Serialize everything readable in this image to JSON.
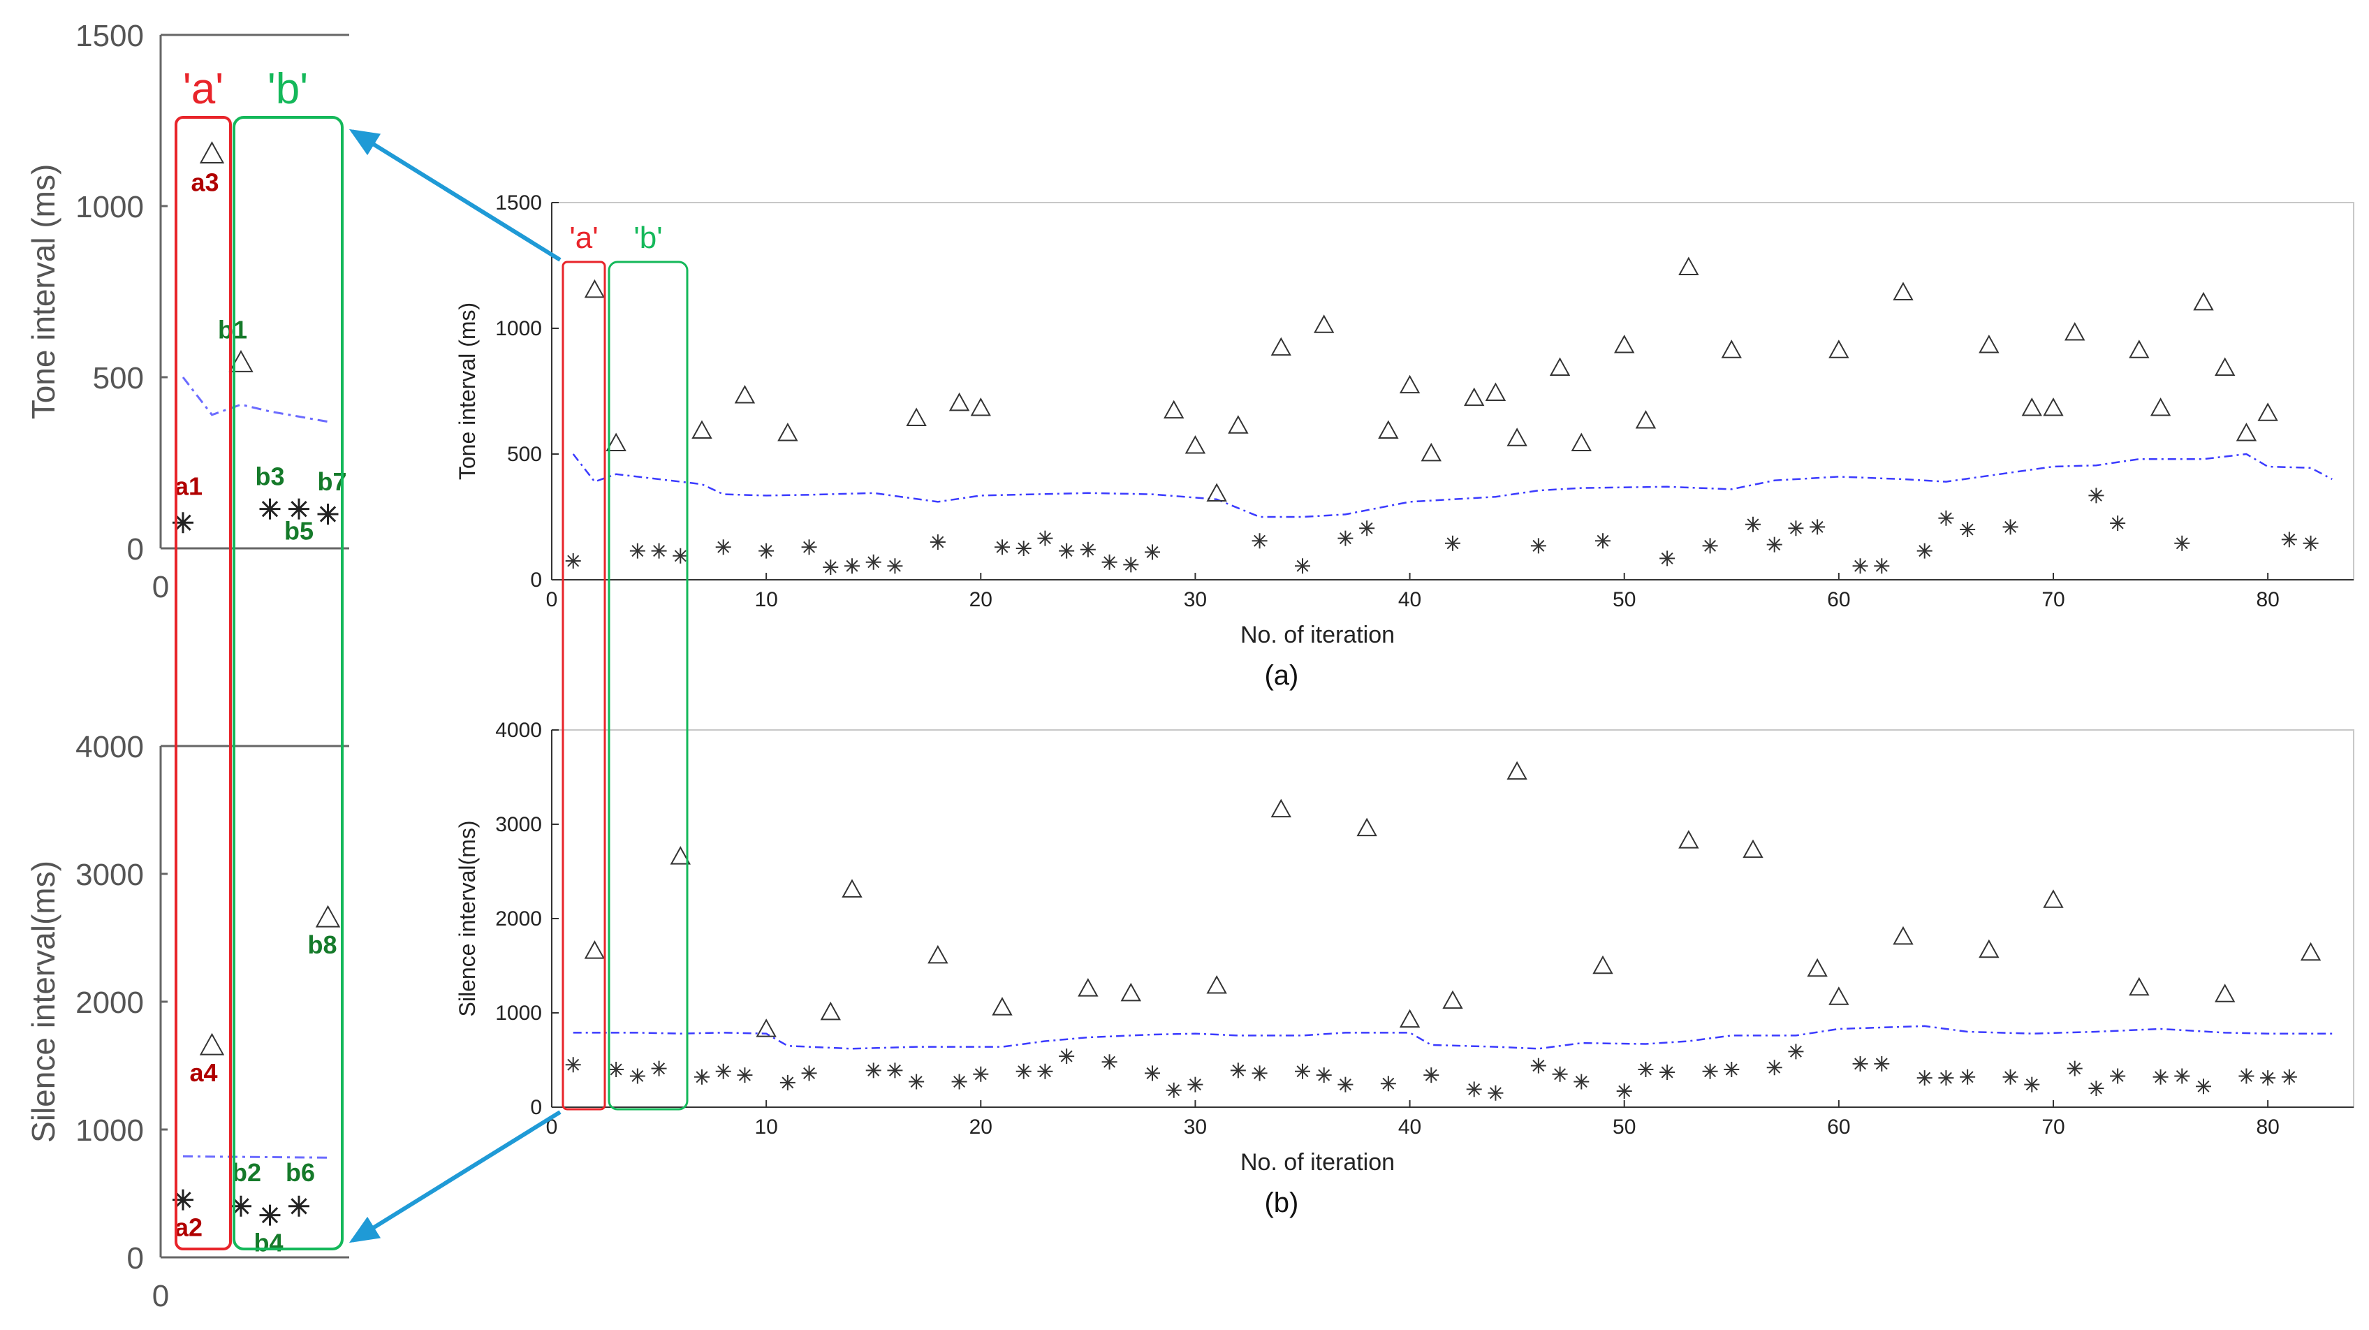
{
  "chart_data": [
    {
      "id": "a",
      "type": "scatter",
      "caption": "(a)",
      "xlabel": "No. of iteration",
      "ylabel": "Tone interval (ms)",
      "xlim": [
        0,
        84
      ],
      "ylim": [
        0,
        1500
      ],
      "xticks": [
        0,
        10,
        20,
        30,
        40,
        50,
        60,
        70,
        80
      ],
      "yticks": [
        0,
        500,
        1000,
        1500
      ],
      "markers": {
        "triangle": "triangle-marker",
        "star": "asterisk-marker",
        "threshold": "dash-dot-line"
      },
      "colors": {
        "points": "#333333",
        "threshold": "#3b3bff"
      },
      "triangle_points": [
        [
          2,
          1150
        ],
        [
          3,
          540
        ],
        [
          7,
          590
        ],
        [
          9,
          730
        ],
        [
          11,
          580
        ],
        [
          17,
          640
        ],
        [
          19,
          700
        ],
        [
          20,
          680
        ],
        [
          29,
          670
        ],
        [
          30,
          530
        ],
        [
          31,
          340
        ],
        [
          32,
          610
        ],
        [
          34,
          920
        ],
        [
          36,
          1010
        ],
        [
          39,
          590
        ],
        [
          40,
          770
        ],
        [
          41,
          500
        ],
        [
          43,
          720
        ],
        [
          44,
          740
        ],
        [
          45,
          560
        ],
        [
          47,
          840
        ],
        [
          48,
          540
        ],
        [
          50,
          930
        ],
        [
          51,
          630
        ],
        [
          53,
          1240
        ],
        [
          55,
          910
        ],
        [
          60,
          910
        ],
        [
          63,
          1140
        ],
        [
          67,
          930
        ],
        [
          69,
          680
        ],
        [
          70,
          680
        ],
        [
          71,
          980
        ],
        [
          74,
          910
        ],
        [
          75,
          680
        ],
        [
          77,
          1100
        ],
        [
          78,
          840
        ],
        [
          79,
          580
        ],
        [
          80,
          660
        ]
      ],
      "star_points": [
        [
          1,
          75
        ],
        [
          4,
          115
        ],
        [
          5,
          115
        ],
        [
          6,
          95
        ],
        [
          8,
          130
        ],
        [
          10,
          115
        ],
        [
          12,
          130
        ],
        [
          13,
          50
        ],
        [
          14,
          55
        ],
        [
          15,
          70
        ],
        [
          16,
          55
        ],
        [
          18,
          150
        ],
        [
          21,
          130
        ],
        [
          22,
          125
        ],
        [
          23,
          165
        ],
        [
          24,
          115
        ],
        [
          25,
          120
        ],
        [
          26,
          70
        ],
        [
          27,
          60
        ],
        [
          28,
          110
        ],
        [
          33,
          155
        ],
        [
          35,
          55
        ],
        [
          37,
          165
        ],
        [
          38,
          205
        ],
        [
          42,
          145
        ],
        [
          46,
          135
        ],
        [
          49,
          155
        ],
        [
          52,
          85
        ],
        [
          54,
          135
        ],
        [
          56,
          220
        ],
        [
          57,
          140
        ],
        [
          58,
          205
        ],
        [
          59,
          210
        ],
        [
          61,
          55
        ],
        [
          62,
          55
        ],
        [
          64,
          115
        ],
        [
          65,
          245
        ],
        [
          66,
          200
        ],
        [
          68,
          210
        ],
        [
          72,
          335
        ],
        [
          73,
          225
        ],
        [
          76,
          145
        ],
        [
          81,
          160
        ],
        [
          82,
          145
        ]
      ],
      "threshold_line": [
        [
          1,
          500
        ],
        [
          2,
          390
        ],
        [
          3,
          420
        ],
        [
          5,
          400
        ],
        [
          7,
          380
        ],
        [
          8,
          340
        ],
        [
          10,
          335
        ],
        [
          12,
          338
        ],
        [
          15,
          345
        ],
        [
          18,
          310
        ],
        [
          20,
          335
        ],
        [
          25,
          345
        ],
        [
          28,
          340
        ],
        [
          31,
          320
        ],
        [
          33,
          250
        ],
        [
          35,
          250
        ],
        [
          37,
          260
        ],
        [
          40,
          310
        ],
        [
          42,
          320
        ],
        [
          44,
          330
        ],
        [
          46,
          355
        ],
        [
          48,
          365
        ],
        [
          52,
          370
        ],
        [
          55,
          360
        ],
        [
          57,
          395
        ],
        [
          60,
          410
        ],
        [
          63,
          400
        ],
        [
          65,
          390
        ],
        [
          70,
          450
        ],
        [
          72,
          455
        ],
        [
          74,
          480
        ],
        [
          77,
          480
        ],
        [
          79,
          500
        ],
        [
          80,
          450
        ],
        [
          82,
          445
        ],
        [
          83,
          400
        ]
      ],
      "box_labels": [
        "'a'",
        "'b'"
      ]
    },
    {
      "id": "b",
      "type": "scatter",
      "caption": "(b)",
      "xlabel": "No. of iteration",
      "ylabel": "Silence interval(ms)",
      "xlim": [
        0,
        84
      ],
      "ylim": [
        0,
        4000
      ],
      "xticks": [
        0,
        10,
        20,
        30,
        40,
        50,
        60,
        70,
        80
      ],
      "yticks": [
        0,
        1000,
        2000,
        3000,
        4000
      ],
      "triangle_points": [
        [
          2,
          1650
        ],
        [
          6,
          2650
        ],
        [
          10,
          820
        ],
        [
          13,
          1000
        ],
        [
          14,
          2300
        ],
        [
          18,
          1600
        ],
        [
          21,
          1050
        ],
        [
          25,
          1250
        ],
        [
          27,
          1200
        ],
        [
          31,
          1280
        ],
        [
          34,
          3150
        ],
        [
          38,
          2950
        ],
        [
          40,
          920
        ],
        [
          42,
          1120
        ],
        [
          45,
          3550
        ],
        [
          49,
          1490
        ],
        [
          53,
          2820
        ],
        [
          56,
          2720
        ],
        [
          59,
          1460
        ],
        [
          60,
          1160
        ],
        [
          63,
          1800
        ],
        [
          67,
          1660
        ],
        [
          70,
          2190
        ],
        [
          74,
          1260
        ],
        [
          78,
          1190
        ],
        [
          82,
          1630
        ]
      ],
      "star_points": [
        [
          1,
          450
        ],
        [
          3,
          400
        ],
        [
          4,
          330
        ],
        [
          5,
          410
        ],
        [
          7,
          320
        ],
        [
          8,
          380
        ],
        [
          9,
          340
        ],
        [
          11,
          260
        ],
        [
          12,
          360
        ],
        [
          15,
          390
        ],
        [
          16,
          390
        ],
        [
          17,
          270
        ],
        [
          19,
          270
        ],
        [
          20,
          350
        ],
        [
          22,
          380
        ],
        [
          23,
          380
        ],
        [
          24,
          540
        ],
        [
          26,
          480
        ],
        [
          28,
          360
        ],
        [
          29,
          180
        ],
        [
          30,
          240
        ],
        [
          32,
          390
        ],
        [
          33,
          360
        ],
        [
          35,
          380
        ],
        [
          36,
          340
        ],
        [
          37,
          240
        ],
        [
          39,
          250
        ],
        [
          41,
          340
        ],
        [
          43,
          190
        ],
        [
          44,
          150
        ],
        [
          46,
          440
        ],
        [
          47,
          350
        ],
        [
          48,
          270
        ],
        [
          50,
          170
        ],
        [
          51,
          400
        ],
        [
          52,
          370
        ],
        [
          54,
          380
        ],
        [
          55,
          400
        ],
        [
          57,
          420
        ],
        [
          58,
          590
        ],
        [
          61,
          460
        ],
        [
          62,
          460
        ],
        [
          64,
          310
        ],
        [
          65,
          310
        ],
        [
          66,
          320
        ],
        [
          68,
          320
        ],
        [
          69,
          240
        ],
        [
          71,
          410
        ],
        [
          72,
          200
        ],
        [
          73,
          330
        ],
        [
          75,
          320
        ],
        [
          76,
          330
        ],
        [
          77,
          220
        ],
        [
          79,
          330
        ],
        [
          80,
          310
        ],
        [
          81,
          320
        ]
      ],
      "threshold_line": [
        [
          1,
          790
        ],
        [
          4,
          790
        ],
        [
          6,
          780
        ],
        [
          8,
          790
        ],
        [
          10,
          780
        ],
        [
          11,
          650
        ],
        [
          14,
          620
        ],
        [
          17,
          640
        ],
        [
          21,
          640
        ],
        [
          23,
          700
        ],
        [
          25,
          740
        ],
        [
          28,
          770
        ],
        [
          30,
          780
        ],
        [
          32,
          760
        ],
        [
          35,
          760
        ],
        [
          37,
          790
        ],
        [
          40,
          790
        ],
        [
          41,
          660
        ],
        [
          44,
          640
        ],
        [
          46,
          620
        ],
        [
          48,
          680
        ],
        [
          51,
          670
        ],
        [
          53,
          700
        ],
        [
          55,
          760
        ],
        [
          58,
          760
        ],
        [
          60,
          830
        ],
        [
          64,
          860
        ],
        [
          66,
          800
        ],
        [
          69,
          780
        ],
        [
          72,
          800
        ],
        [
          75,
          830
        ],
        [
          78,
          790
        ],
        [
          80,
          780
        ],
        [
          83,
          780
        ]
      ]
    },
    {
      "id": "zoom-tone",
      "type": "scatter",
      "ylabel": "Tone interval (ms)",
      "ylim": [
        0,
        1500
      ],
      "yticks": [
        0,
        500,
        1000,
        1500
      ],
      "xtick_label": "0",
      "box_labels": [
        "'a'",
        "'b'"
      ],
      "triangle_points": [
        {
          "x": 2,
          "y": 1150,
          "label": "a3"
        },
        {
          "x": 3,
          "y": 540,
          "label": "b1"
        }
      ],
      "star_points": [
        {
          "x": 1,
          "y": 75,
          "label": "a1"
        },
        {
          "x": 4,
          "y": 115,
          "label": "b3"
        },
        {
          "x": 5,
          "y": 115,
          "label": "b5"
        },
        {
          "x": 6,
          "y": 100,
          "label": "b7"
        }
      ],
      "threshold_line": [
        [
          1,
          500
        ],
        [
          2,
          390
        ],
        [
          3,
          420
        ],
        [
          4,
          400
        ],
        [
          6,
          370
        ]
      ]
    },
    {
      "id": "zoom-silence",
      "type": "scatter",
      "ylabel": "Silence interval(ms)",
      "ylim": [
        0,
        4000
      ],
      "yticks": [
        0,
        1000,
        2000,
        3000,
        4000
      ],
      "xtick_label": "0",
      "triangle_points": [
        {
          "x": 2,
          "y": 1650,
          "label": "a4"
        },
        {
          "x": 6,
          "y": 2650,
          "label": "b8"
        }
      ],
      "star_points": [
        {
          "x": 1,
          "y": 450,
          "label": "a2"
        },
        {
          "x": 3,
          "y": 400,
          "label": "b2"
        },
        {
          "x": 4,
          "y": 330,
          "label": "b4"
        },
        {
          "x": 5,
          "y": 400,
          "label": "b6"
        }
      ],
      "threshold_line": [
        [
          1,
          790
        ],
        [
          6,
          780
        ]
      ]
    }
  ],
  "colors": {
    "box_a": "#e8242a",
    "box_b": "#14b85a",
    "label_a": "#b00000",
    "label_b": "#157a2a",
    "arrow": "#1f9ad6"
  }
}
